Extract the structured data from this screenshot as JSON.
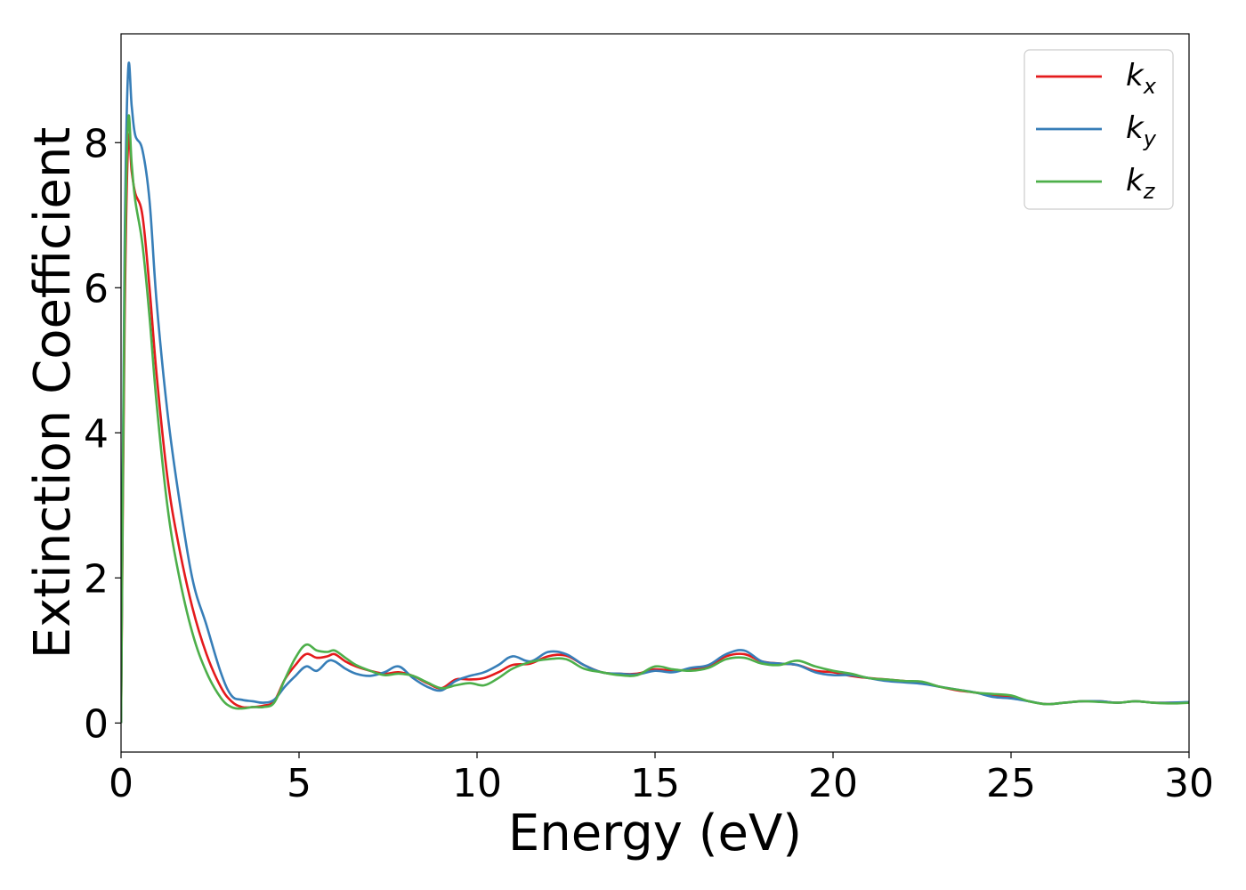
{
  "chart_data": {
    "type": "line",
    "title": "",
    "xlabel": "Energy (eV)",
    "ylabel": "Extinction Coefficient",
    "xlim": [
      0,
      30
    ],
    "ylim": [
      -0.4,
      9.5
    ],
    "xticks": [
      0,
      5,
      10,
      15,
      20,
      25,
      30
    ],
    "xtick_labels": [
      "0",
      "5",
      "10",
      "15",
      "20",
      "25",
      "30"
    ],
    "yticks": [
      0,
      2,
      4,
      6,
      8
    ],
    "ytick_labels": [
      "0",
      "2",
      "4",
      "6",
      "8"
    ],
    "grid": false,
    "legend_position": "top-right",
    "series": [
      {
        "name": "k",
        "subscript": "x",
        "color": "#e41a1c",
        "x": [
          0.0,
          0.1,
          0.2,
          0.3,
          0.4,
          0.6,
          0.8,
          1.0,
          1.3,
          1.6,
          2.0,
          2.4,
          2.8,
          3.1,
          3.4,
          3.7,
          4.0,
          4.3,
          4.6,
          4.9,
          5.2,
          5.5,
          5.8,
          6.0,
          6.3,
          6.6,
          7.0,
          7.4,
          7.8,
          8.2,
          8.6,
          9.0,
          9.4,
          9.8,
          10.2,
          10.6,
          11.0,
          11.5,
          12.0,
          12.5,
          13.0,
          13.5,
          14.0,
          14.5,
          15.0,
          15.5,
          16.0,
          16.5,
          17.0,
          17.5,
          18.0,
          18.5,
          19.0,
          19.5,
          20.0,
          20.5,
          21.0,
          21.5,
          22.0,
          22.5,
          23.0,
          23.5,
          24.0,
          24.5,
          25.0,
          25.5,
          26.0,
          26.5,
          27.0,
          27.5,
          28.0,
          28.5,
          29.0,
          29.5,
          30.0
        ],
        "y": [
          0.0,
          5.5,
          8.0,
          7.6,
          7.3,
          7.0,
          6.0,
          4.8,
          3.4,
          2.5,
          1.6,
          0.95,
          0.5,
          0.3,
          0.22,
          0.22,
          0.24,
          0.3,
          0.6,
          0.8,
          0.95,
          0.9,
          0.92,
          0.95,
          0.85,
          0.78,
          0.72,
          0.68,
          0.7,
          0.65,
          0.55,
          0.48,
          0.6,
          0.6,
          0.62,
          0.7,
          0.8,
          0.82,
          0.92,
          0.93,
          0.8,
          0.7,
          0.68,
          0.68,
          0.74,
          0.72,
          0.74,
          0.78,
          0.92,
          0.95,
          0.85,
          0.82,
          0.8,
          0.72,
          0.7,
          0.65,
          0.62,
          0.6,
          0.58,
          0.56,
          0.5,
          0.45,
          0.42,
          0.38,
          0.36,
          0.3,
          0.26,
          0.28,
          0.3,
          0.3,
          0.28,
          0.3,
          0.28,
          0.28,
          0.28
        ]
      },
      {
        "name": "k",
        "subscript": "y",
        "color": "#377eb8",
        "x": [
          0.0,
          0.1,
          0.2,
          0.3,
          0.4,
          0.6,
          0.8,
          1.0,
          1.3,
          1.6,
          2.0,
          2.4,
          2.8,
          3.1,
          3.4,
          3.7,
          4.0,
          4.3,
          4.6,
          4.9,
          5.2,
          5.5,
          5.8,
          6.0,
          6.3,
          6.6,
          7.0,
          7.4,
          7.8,
          8.2,
          8.6,
          9.0,
          9.4,
          9.8,
          10.2,
          10.6,
          11.0,
          11.5,
          12.0,
          12.5,
          13.0,
          13.5,
          14.0,
          14.5,
          15.0,
          15.5,
          16.0,
          16.5,
          17.0,
          17.5,
          18.0,
          18.5,
          19.0,
          19.5,
          20.0,
          20.5,
          21.0,
          21.5,
          22.0,
          22.5,
          23.0,
          23.5,
          24.0,
          24.5,
          25.0,
          25.5,
          26.0,
          26.5,
          27.0,
          27.5,
          28.0,
          28.5,
          29.0,
          29.5,
          30.0
        ],
        "y": [
          0.0,
          6.5,
          9.0,
          8.5,
          8.1,
          7.9,
          7.2,
          5.8,
          4.3,
          3.2,
          2.0,
          1.35,
          0.7,
          0.38,
          0.32,
          0.3,
          0.28,
          0.32,
          0.5,
          0.65,
          0.78,
          0.72,
          0.85,
          0.85,
          0.75,
          0.68,
          0.65,
          0.7,
          0.78,
          0.62,
          0.5,
          0.45,
          0.58,
          0.65,
          0.7,
          0.8,
          0.92,
          0.85,
          0.98,
          0.95,
          0.8,
          0.7,
          0.68,
          0.67,
          0.72,
          0.7,
          0.76,
          0.8,
          0.95,
          1.0,
          0.85,
          0.82,
          0.8,
          0.7,
          0.66,
          0.66,
          0.62,
          0.58,
          0.56,
          0.54,
          0.5,
          0.46,
          0.42,
          0.36,
          0.34,
          0.3,
          0.26,
          0.28,
          0.3,
          0.3,
          0.28,
          0.3,
          0.28,
          0.28,
          0.29
        ]
      },
      {
        "name": "k",
        "subscript": "z",
        "color": "#4daf4a",
        "x": [
          0.0,
          0.1,
          0.2,
          0.3,
          0.4,
          0.6,
          0.8,
          1.0,
          1.3,
          1.6,
          2.0,
          2.4,
          2.8,
          3.1,
          3.4,
          3.7,
          4.0,
          4.3,
          4.6,
          4.9,
          5.2,
          5.5,
          5.8,
          6.0,
          6.3,
          6.6,
          7.0,
          7.4,
          7.8,
          8.2,
          8.6,
          9.0,
          9.4,
          9.8,
          10.2,
          10.6,
          11.0,
          11.5,
          12.0,
          12.5,
          13.0,
          13.5,
          14.0,
          14.5,
          15.0,
          15.5,
          16.0,
          16.5,
          17.0,
          17.5,
          18.0,
          18.5,
          19.0,
          19.5,
          20.0,
          20.5,
          21.0,
          21.5,
          22.0,
          22.5,
          23.0,
          23.5,
          24.0,
          24.5,
          25.0,
          25.5,
          26.0,
          26.5,
          27.0,
          27.5,
          28.0,
          28.5,
          29.0,
          29.5,
          30.0
        ],
        "y": [
          0.0,
          6.0,
          8.3,
          7.7,
          7.2,
          6.6,
          5.6,
          4.4,
          3.0,
          2.1,
          1.25,
          0.7,
          0.35,
          0.22,
          0.2,
          0.22,
          0.22,
          0.28,
          0.6,
          0.9,
          1.08,
          1.0,
          0.98,
          1.0,
          0.9,
          0.8,
          0.72,
          0.66,
          0.68,
          0.65,
          0.56,
          0.48,
          0.52,
          0.55,
          0.52,
          0.62,
          0.75,
          0.84,
          0.88,
          0.88,
          0.75,
          0.7,
          0.66,
          0.66,
          0.78,
          0.74,
          0.72,
          0.76,
          0.88,
          0.9,
          0.82,
          0.8,
          0.86,
          0.78,
          0.72,
          0.68,
          0.62,
          0.6,
          0.58,
          0.57,
          0.5,
          0.46,
          0.42,
          0.4,
          0.38,
          0.3,
          0.26,
          0.28,
          0.3,
          0.29,
          0.28,
          0.3,
          0.28,
          0.27,
          0.28
        ]
      }
    ]
  }
}
